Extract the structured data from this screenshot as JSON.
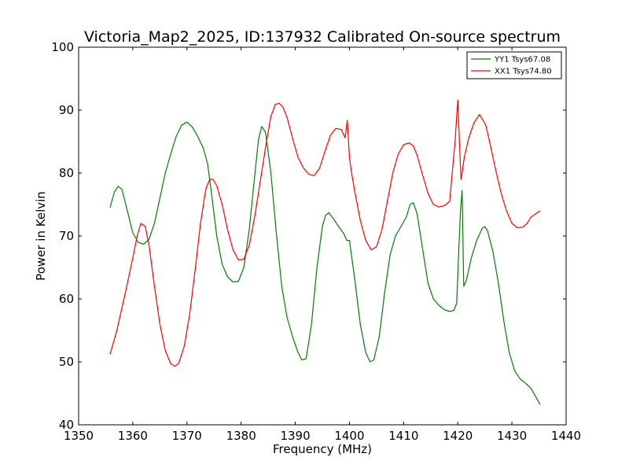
{
  "chart_data": {
    "type": "line",
    "title": "Victoria_Map2_2025, ID:137932 Calibrated On-source spectrum",
    "xlabel": "Frequency (MHz)",
    "ylabel": "Power in Kelvin",
    "xlim": [
      1350,
      1440
    ],
    "ylim": [
      40,
      100
    ],
    "xticks": [
      "1350",
      "1360",
      "1370",
      "1380",
      "1390",
      "1400",
      "1410",
      "1420",
      "1430",
      "1440"
    ],
    "yticks": [
      "40",
      "50",
      "60",
      "70",
      "80",
      "90",
      "100"
    ],
    "grid": false,
    "legend_position": "top-right",
    "series": [
      {
        "name": "YY1 Tsys67.08",
        "color": "#008000",
        "x": [
          1355.8,
          1356.6,
          1357.3,
          1358.0,
          1359.0,
          1360.0,
          1361.0,
          1362.0,
          1363.0,
          1364.0,
          1365.0,
          1366.0,
          1367.0,
          1368.0,
          1369.0,
          1370.0,
          1371.0,
          1372.0,
          1373.0,
          1373.8,
          1374.5,
          1375.5,
          1376.5,
          1377.5,
          1378.5,
          1379.5,
          1380.5,
          1381.5,
          1382.5,
          1383.2,
          1383.8,
          1384.5,
          1385.5,
          1386.5,
          1387.5,
          1388.5,
          1389.5,
          1390.5,
          1391.2,
          1392.0,
          1393.0,
          1394.0,
          1395.0,
          1395.6,
          1396.2,
          1397.0,
          1398.0,
          1399.0,
          1399.5,
          1400.0,
          1401.0,
          1402.0,
          1403.0,
          1403.8,
          1404.5,
          1405.5,
          1406.5,
          1407.5,
          1408.5,
          1409.5,
          1410.5,
          1411.2,
          1411.8,
          1412.5,
          1413.5,
          1414.5,
          1415.5,
          1416.5,
          1417.5,
          1418.5,
          1419.3,
          1419.8,
          1420.2,
          1420.5,
          1420.8,
          1421.1,
          1421.6,
          1422.5,
          1423.5,
          1424.5,
          1425.0,
          1425.5,
          1426.5,
          1427.5,
          1428.5,
          1429.5,
          1430.5,
          1431.5,
          1432.5,
          1433.5,
          1434.5,
          1435.2
        ],
        "values": [
          74.5,
          77.0,
          77.9,
          77.4,
          74.0,
          70.5,
          69.0,
          68.7,
          69.5,
          72.0,
          76.0,
          80.0,
          83.0,
          85.8,
          87.6,
          88.1,
          87.3,
          85.8,
          84.0,
          81.5,
          77.0,
          70.0,
          65.5,
          63.5,
          62.7,
          62.8,
          65.0,
          71.0,
          79.5,
          85.3,
          87.4,
          86.5,
          80.0,
          70.5,
          62.0,
          57.0,
          54.0,
          51.5,
          50.3,
          50.5,
          56.0,
          65.0,
          71.5,
          73.3,
          73.7,
          72.8,
          71.5,
          70.3,
          69.3,
          69.3,
          63.0,
          56.0,
          51.5,
          50.0,
          50.3,
          54.0,
          61.0,
          67.0,
          70.0,
          71.5,
          73.0,
          75.0,
          75.3,
          73.5,
          68.0,
          62.5,
          60.0,
          59.0,
          58.3,
          58.0,
          58.2,
          59.3,
          68.0,
          74.0,
          77.2,
          62.0,
          63.0,
          66.5,
          69.3,
          71.2,
          71.5,
          70.8,
          67.5,
          62.5,
          56.5,
          51.5,
          48.6,
          47.3,
          46.6,
          45.8,
          44.3,
          43.2
        ]
      },
      {
        "name": "XX1 Tsys74.80",
        "color": "#ff0000",
        "x": [
          1355.8,
          1357.0,
          1358.5,
          1360.0,
          1360.8,
          1361.5,
          1362.3,
          1363.0,
          1364.0,
          1365.0,
          1366.0,
          1367.0,
          1367.8,
          1368.5,
          1369.5,
          1370.5,
          1371.5,
          1372.5,
          1373.5,
          1374.2,
          1374.8,
          1375.5,
          1376.5,
          1377.5,
          1378.5,
          1379.5,
          1380.5,
          1381.5,
          1382.5,
          1383.5,
          1384.5,
          1385.5,
          1386.3,
          1387.0,
          1387.7,
          1388.5,
          1389.5,
          1390.5,
          1391.5,
          1392.5,
          1393.5,
          1394.5,
          1395.5,
          1396.5,
          1397.5,
          1398.5,
          1399.2,
          1399.6,
          1400.0,
          1400.4,
          1401.0,
          1402.0,
          1403.0,
          1404.0,
          1405.0,
          1406.0,
          1407.0,
          1408.0,
          1409.0,
          1410.0,
          1411.0,
          1411.8,
          1412.5,
          1413.5,
          1414.5,
          1415.5,
          1416.5,
          1417.5,
          1418.5,
          1419.5,
          1420.0,
          1420.3,
          1420.6,
          1420.8,
          1421.2,
          1422.0,
          1423.0,
          1424.0,
          1424.8,
          1425.2,
          1426.0,
          1427.0,
          1428.0,
          1429.0,
          1430.0,
          1431.0,
          1432.0,
          1432.8,
          1433.5,
          1434.5,
          1435.2
        ],
        "values": [
          51.2,
          54.8,
          60.5,
          66.5,
          70.0,
          72.0,
          71.5,
          68.5,
          62.0,
          56.0,
          51.8,
          49.7,
          49.3,
          49.8,
          52.5,
          57.5,
          64.5,
          72.0,
          77.5,
          79.0,
          79.0,
          78.0,
          75.0,
          71.0,
          67.8,
          66.2,
          66.3,
          68.5,
          73.0,
          78.5,
          84.0,
          89.0,
          90.9,
          91.1,
          90.5,
          88.8,
          85.5,
          82.5,
          80.8,
          79.8,
          79.6,
          80.8,
          83.5,
          86.0,
          87.1,
          86.9,
          85.6,
          88.4,
          82.5,
          80.0,
          77.0,
          72.5,
          69.3,
          67.8,
          68.3,
          71.0,
          75.5,
          80.0,
          83.0,
          84.5,
          84.8,
          84.3,
          82.8,
          79.7,
          76.8,
          75.0,
          74.6,
          74.8,
          75.5,
          85.0,
          91.6,
          85.0,
          79.0,
          80.0,
          82.5,
          85.5,
          88.0,
          89.3,
          88.2,
          87.5,
          84.5,
          80.5,
          76.8,
          74.0,
          72.0,
          71.3,
          71.4,
          72.0,
          73.0,
          73.6,
          74.0
        ]
      }
    ]
  }
}
